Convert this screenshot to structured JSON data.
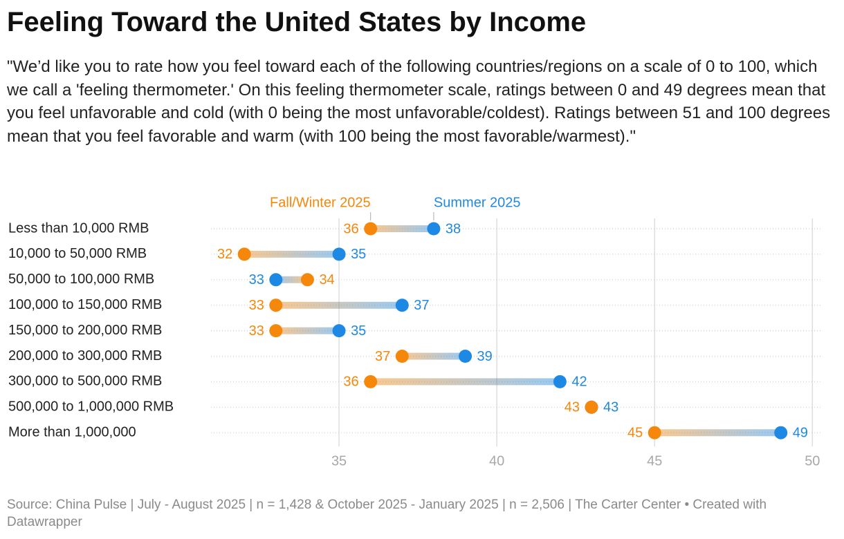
{
  "chart_data": {
    "type": "dumbbell",
    "title": "Feeling Toward the United States by Income",
    "subtitle": "\"We’d like you to rate how you feel toward each of the following countries/regions on a scale of 0 to 100, which we call a 'feeling thermometer.' On this feeling thermometer scale, ratings between 0 and 49 degrees mean that you feel unfavorable and cold (with 0 being the most unfavorable/coldest). Ratings between 51 and 100 degrees mean that you feel favorable and warm (with 100 being the most favorable/warmest).\"",
    "source": "Source: China Pulse | July - August 2025 | n = 1,428 & October 2025 - January 2025 | n = 2,506 | The Carter Center • Created with Datawrapper",
    "categories": [
      "Less than 10,000 RMB",
      "10,000 to 50,000 RMB",
      "50,000 to 100,000 RMB",
      "100,000 to 150,000 RMB",
      "150,000 to 200,000 RMB",
      "200,000 to 300,000 RMB",
      "300,000 to 500,000 RMB",
      "500,000 to 1,000,000 RMB",
      "More than 1,000,000"
    ],
    "series": [
      {
        "name": "Fall/Winter 2025",
        "color": "#f5870a",
        "values": [
          36,
          32,
          34,
          33,
          33,
          37,
          36,
          43,
          45
        ]
      },
      {
        "name": "Summer 2025",
        "color": "#1e88e5",
        "values": [
          38,
          35,
          33,
          37,
          35,
          39,
          42,
          43,
          49
        ]
      }
    ],
    "xlim": [
      31,
      50.3
    ],
    "xticks": [
      35,
      40,
      45,
      50
    ],
    "grid": true
  }
}
